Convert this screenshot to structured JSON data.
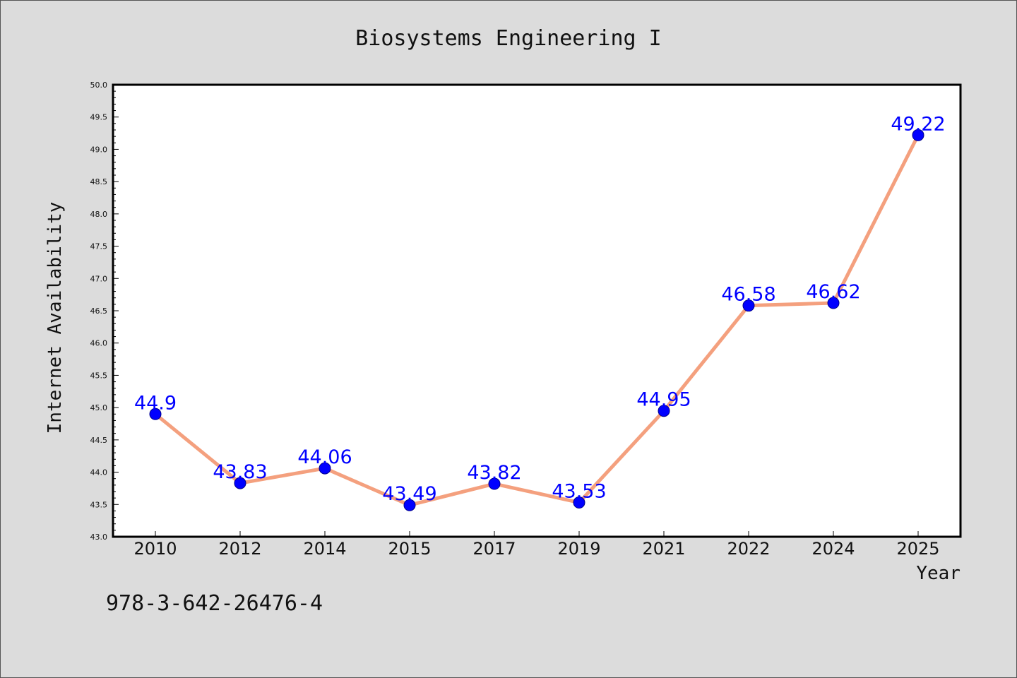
{
  "chart_data": {
    "type": "line",
    "title": "Biosystems Engineering I",
    "xlabel": "Year",
    "ylabel": "Internet Availability",
    "categories": [
      "2010",
      "2012",
      "2014",
      "2015",
      "2017",
      "2019",
      "2021",
      "2022",
      "2024",
      "2025"
    ],
    "values": [
      44.9,
      43.83,
      44.06,
      43.49,
      43.82,
      43.53,
      44.95,
      46.58,
      46.62,
      49.22
    ],
    "data_labels": [
      "44.9",
      "43.83",
      "44.06",
      "43.49",
      "43.82",
      "43.53",
      "44.95",
      "46.58",
      "46.62",
      "49.22"
    ],
    "ylim": [
      43.0,
      50.0
    ],
    "yticks": [
      "43.0",
      "43.5",
      "44.0",
      "44.5",
      "45.0",
      "45.5",
      "46.0",
      "46.5",
      "47.0",
      "47.5",
      "48.0",
      "48.5",
      "49.0",
      "49.5",
      "50.0"
    ],
    "grid": false,
    "line_color": "#f4a07e",
    "marker_color": "#0000ff",
    "label_color": "#0000ff",
    "annotation": "978-3-642-26476-4"
  }
}
